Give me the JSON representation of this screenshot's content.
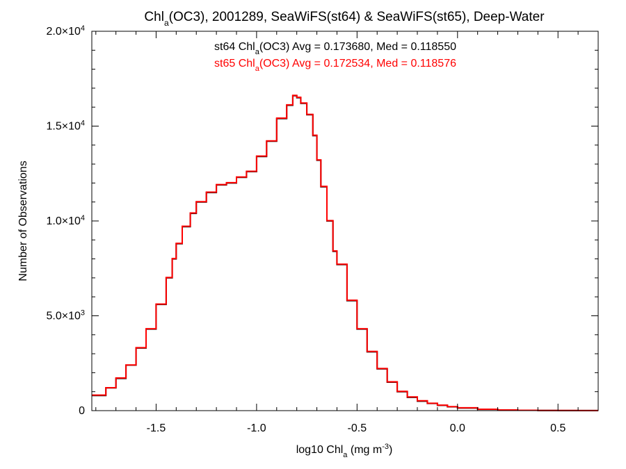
{
  "chart_data": {
    "type": "line",
    "title_main": "Chl",
    "title_sub": "a",
    "title_rest": "(OC3), 2001289, SeaWiFS(st64) & SeaWiFS(st65), Deep-Water",
    "xlabel_main": "log10 Chl",
    "xlabel_sub": "a",
    "xlabel_rest": " (mg m",
    "xlabel_sup": "-3",
    "xlabel_end": ")",
    "ylabel": "Number of Observations",
    "xlim": [
      -1.82,
      0.7
    ],
    "ylim": [
      0,
      20000
    ],
    "x_ticks": [
      {
        "value": -1.5,
        "label": "-1.5"
      },
      {
        "value": -1.0,
        "label": "-1.0"
      },
      {
        "value": -0.5,
        "label": "-0.5"
      },
      {
        "value": 0.0,
        "label": "0.0"
      },
      {
        "value": 0.5,
        "label": "0.5"
      }
    ],
    "y_ticks": [
      {
        "value": 0,
        "base": "0",
        "exp": ""
      },
      {
        "value": 5000,
        "base": "5.0×10",
        "exp": "3"
      },
      {
        "value": 10000,
        "base": "1.0×10",
        "exp": "4"
      },
      {
        "value": 15000,
        "base": "1.5×10",
        "exp": "4"
      },
      {
        "value": 20000,
        "base": "2.0×10",
        "exp": "4"
      }
    ],
    "annotations": [
      {
        "series": "st64",
        "color": "#000000",
        "prefix": "st64 Chl",
        "sub": "a",
        "suffix": "(OC3) Avg = 0.173680, Med = 0.118550"
      },
      {
        "series": "st65",
        "color": "#ff0000",
        "prefix": "st65 Chl",
        "sub": "a",
        "suffix": "(OC3) Avg = 0.172534, Med = 0.118576"
      }
    ],
    "series": [
      {
        "name": "st64",
        "color": "#000000",
        "x": [
          -1.82,
          -1.75,
          -1.7,
          -1.65,
          -1.6,
          -1.55,
          -1.5,
          -1.45,
          -1.42,
          -1.4,
          -1.37,
          -1.33,
          -1.3,
          -1.25,
          -1.2,
          -1.15,
          -1.1,
          -1.05,
          -1.0,
          -0.95,
          -0.9,
          -0.85,
          -0.82,
          -0.8,
          -0.78,
          -0.75,
          -0.72,
          -0.7,
          -0.68,
          -0.65,
          -0.62,
          -0.6,
          -0.55,
          -0.5,
          -0.45,
          -0.4,
          -0.35,
          -0.3,
          -0.25,
          -0.2,
          -0.15,
          -0.1,
          -0.05,
          0.0,
          0.1,
          0.2,
          0.3,
          0.4,
          0.5,
          0.6,
          0.7
        ],
        "y": [
          800,
          1200,
          1700,
          2400,
          3300,
          4300,
          5600,
          7000,
          8000,
          8800,
          9700,
          10400,
          11000,
          11500,
          11900,
          12000,
          12300,
          12600,
          13400,
          14200,
          15400,
          16100,
          16600,
          16500,
          16200,
          15600,
          14500,
          13200,
          11800,
          10000,
          8400,
          7700,
          5800,
          4300,
          3100,
          2200,
          1500,
          1000,
          700,
          500,
          380,
          280,
          200,
          140,
          70,
          35,
          18,
          10,
          5,
          3,
          2
        ]
      },
      {
        "name": "st65",
        "color": "#ff0000",
        "x": [
          -1.82,
          -1.75,
          -1.7,
          -1.65,
          -1.6,
          -1.55,
          -1.5,
          -1.45,
          -1.42,
          -1.4,
          -1.37,
          -1.33,
          -1.3,
          -1.25,
          -1.2,
          -1.15,
          -1.1,
          -1.05,
          -1.0,
          -0.95,
          -0.9,
          -0.85,
          -0.82,
          -0.8,
          -0.78,
          -0.75,
          -0.72,
          -0.7,
          -0.68,
          -0.65,
          -0.62,
          -0.6,
          -0.55,
          -0.5,
          -0.45,
          -0.4,
          -0.35,
          -0.3,
          -0.25,
          -0.2,
          -0.15,
          -0.1,
          -0.05,
          0.0,
          0.1,
          0.2,
          0.3,
          0.4,
          0.5,
          0.6,
          0.7
        ],
        "y": [
          820,
          1210,
          1720,
          2410,
          3320,
          4320,
          5620,
          7020,
          8020,
          8820,
          9720,
          10420,
          11020,
          11520,
          11920,
          12020,
          12320,
          12620,
          13420,
          14220,
          15420,
          16120,
          16620,
          16520,
          16220,
          15620,
          14520,
          13220,
          11820,
          10020,
          8420,
          7720,
          5820,
          4320,
          3120,
          2220,
          1520,
          1020,
          720,
          520,
          390,
          290,
          210,
          150,
          75,
          38,
          20,
          11,
          6,
          3,
          2
        ]
      }
    ]
  }
}
